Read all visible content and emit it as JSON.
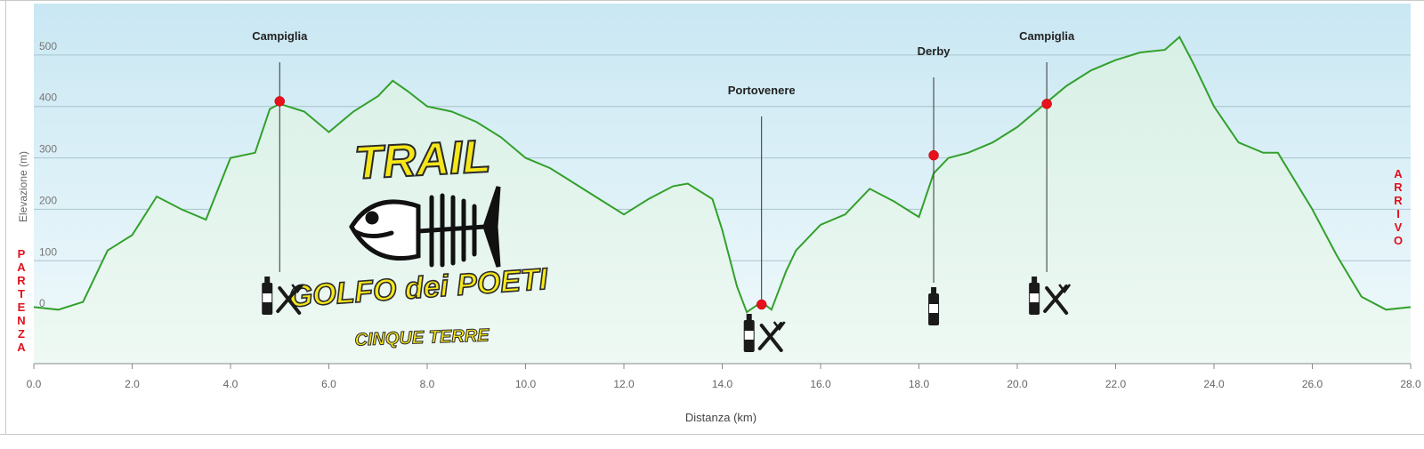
{
  "chart_data": {
    "type": "area",
    "xlabel": "Distanza  (km)",
    "ylabel": "Elevazione (m)",
    "xlim": [
      0,
      28
    ],
    "ylim": [
      -100,
      600
    ],
    "x_ticks": [
      "0.0",
      "2.0",
      "4.0",
      "6.0",
      "8.0",
      "10.0",
      "12.0",
      "14.0",
      "16.0",
      "18.0",
      "20.0",
      "22.0",
      "24.0",
      "26.0",
      "28.0"
    ],
    "y_ticks": [
      "0",
      "100",
      "200",
      "300",
      "400",
      "500"
    ],
    "grid": true,
    "series": [
      {
        "values": [
          [
            0.0,
            10
          ],
          [
            0.5,
            5
          ],
          [
            1.0,
            20
          ],
          [
            1.5,
            120
          ],
          [
            2.0,
            150
          ],
          [
            2.5,
            225
          ],
          [
            3.0,
            200
          ],
          [
            3.5,
            180
          ],
          [
            4.0,
            300
          ],
          [
            4.5,
            310
          ],
          [
            4.8,
            395
          ],
          [
            5.0,
            405
          ],
          [
            5.5,
            390
          ],
          [
            6.0,
            350
          ],
          [
            6.5,
            390
          ],
          [
            7.0,
            420
          ],
          [
            7.3,
            450
          ],
          [
            7.6,
            430
          ],
          [
            8.0,
            400
          ],
          [
            8.5,
            390
          ],
          [
            9.0,
            370
          ],
          [
            9.5,
            340
          ],
          [
            10.0,
            300
          ],
          [
            10.5,
            280
          ],
          [
            11.0,
            250
          ],
          [
            11.5,
            220
          ],
          [
            12.0,
            190
          ],
          [
            12.5,
            220
          ],
          [
            13.0,
            245
          ],
          [
            13.3,
            250
          ],
          [
            13.8,
            220
          ],
          [
            14.0,
            160
          ],
          [
            14.3,
            50
          ],
          [
            14.5,
            0
          ],
          [
            14.8,
            20
          ],
          [
            15.0,
            5
          ],
          [
            15.3,
            80
          ],
          [
            15.5,
            120
          ],
          [
            16.0,
            170
          ],
          [
            16.5,
            190
          ],
          [
            17.0,
            240
          ],
          [
            17.5,
            215
          ],
          [
            18.0,
            185
          ],
          [
            18.3,
            270
          ],
          [
            18.6,
            300
          ],
          [
            19.0,
            310
          ],
          [
            19.5,
            330
          ],
          [
            20.0,
            360
          ],
          [
            20.5,
            400
          ],
          [
            21.0,
            440
          ],
          [
            21.5,
            470
          ],
          [
            22.0,
            490
          ],
          [
            22.5,
            505
          ],
          [
            23.0,
            510
          ],
          [
            23.3,
            535
          ],
          [
            23.6,
            480
          ],
          [
            24.0,
            400
          ],
          [
            24.5,
            330
          ],
          [
            25.0,
            310
          ],
          [
            25.3,
            310
          ],
          [
            26.0,
            200
          ],
          [
            26.5,
            110
          ],
          [
            27.0,
            30
          ],
          [
            27.5,
            5
          ],
          [
            28.0,
            10
          ]
        ]
      }
    ],
    "markers": [
      {
        "label": "Campiglia",
        "x": 5.0,
        "y": 410,
        "icon": "bottle-cutlery-icon"
      },
      {
        "label": "Portovenere",
        "x": 14.8,
        "y": 15,
        "icon": "bottle-cutlery-icon"
      },
      {
        "label": "Derby",
        "x": 18.3,
        "y": 305,
        "icon": "bottle-icon"
      },
      {
        "label": "Campiglia",
        "x": 20.6,
        "y": 405,
        "icon": "bottle-cutlery-icon"
      }
    ],
    "start_label": "PARTENZA",
    "end_label": "ARRIVO",
    "logo_text": [
      "TRAIL",
      "GOLFO dei POETI",
      "CINQUE TERRE"
    ],
    "colors": {
      "line": "#33a02c",
      "fill_top": "#d8f0e6",
      "fill_bottom": "#eef9f3",
      "sky_top": "#c9e7f3",
      "sky_bottom": "#f1fafc",
      "marker": "#e8101c",
      "grid": "#a9c4cc",
      "label_red": "#e0101c",
      "logo_yellow": "#f5e61a"
    }
  }
}
